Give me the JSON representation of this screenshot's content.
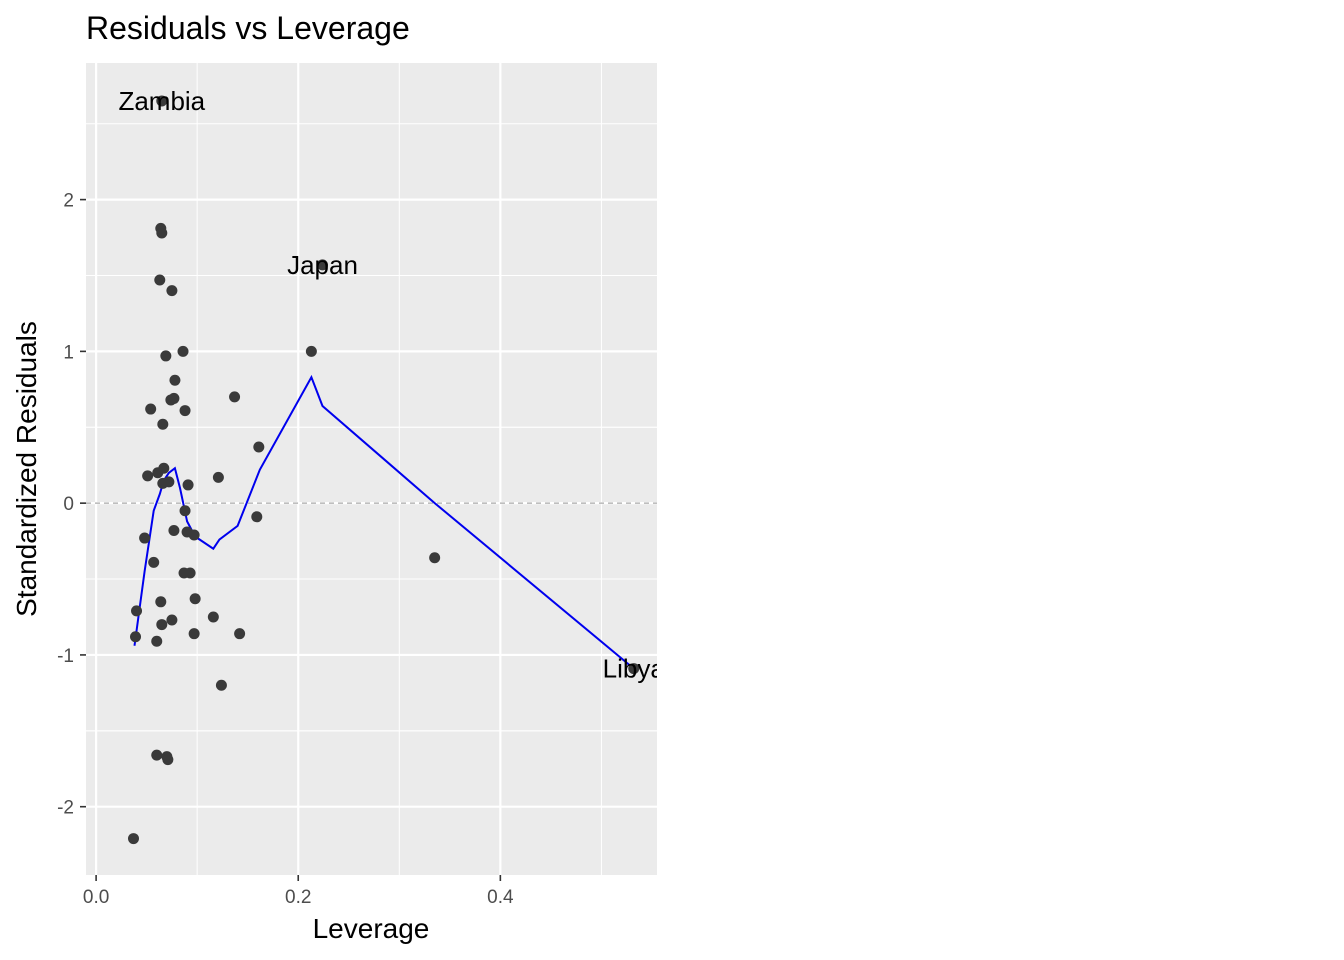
{
  "chart_data": {
    "type": "scatter",
    "title": "Residuals vs Leverage",
    "xlabel": "Leverage",
    "ylabel": "Standardized Residuals",
    "xlim": [
      -0.01,
      0.555
    ],
    "ylim": [
      -2.45,
      2.9
    ],
    "xticks": [
      0.0,
      0.2,
      0.4
    ],
    "xtick_labels": [
      "0.0",
      "0.2",
      "0.4"
    ],
    "yticks": [
      -2,
      -1,
      0,
      1,
      2
    ],
    "ytick_labels": [
      "-2",
      "-1",
      "0",
      "1",
      "2"
    ],
    "grid": true,
    "reference_line": {
      "y": 0,
      "style": "dashed"
    },
    "colors": {
      "panel": "#ebebeb",
      "grid": "#ffffff",
      "points": "#3a3a3a",
      "smooth": "#0000ee",
      "refline": "#a9a9a9"
    },
    "points": [
      {
        "x": 0.065,
        "y": 2.65
      },
      {
        "x": 0.064,
        "y": 1.81
      },
      {
        "x": 0.065,
        "y": 1.78
      },
      {
        "x": 0.063,
        "y": 1.47
      },
      {
        "x": 0.075,
        "y": 1.4
      },
      {
        "x": 0.086,
        "y": 1.0
      },
      {
        "x": 0.069,
        "y": 0.97
      },
      {
        "x": 0.078,
        "y": 0.81
      },
      {
        "x": 0.137,
        "y": 0.7
      },
      {
        "x": 0.077,
        "y": 0.69
      },
      {
        "x": 0.074,
        "y": 0.68
      },
      {
        "x": 0.054,
        "y": 0.62
      },
      {
        "x": 0.088,
        "y": 0.61
      },
      {
        "x": 0.066,
        "y": 0.52
      },
      {
        "x": 0.161,
        "y": 0.37
      },
      {
        "x": 0.067,
        "y": 0.23
      },
      {
        "x": 0.061,
        "y": 0.2
      },
      {
        "x": 0.051,
        "y": 0.18
      },
      {
        "x": 0.072,
        "y": 0.14
      },
      {
        "x": 0.066,
        "y": 0.13
      },
      {
        "x": 0.121,
        "y": 0.17
      },
      {
        "x": 0.091,
        "y": 0.12
      },
      {
        "x": 0.088,
        "y": -0.05
      },
      {
        "x": 0.159,
        "y": -0.09
      },
      {
        "x": 0.077,
        "y": -0.18
      },
      {
        "x": 0.09,
        "y": -0.19
      },
      {
        "x": 0.097,
        "y": -0.21
      },
      {
        "x": 0.048,
        "y": -0.23
      },
      {
        "x": 0.057,
        "y": -0.39
      },
      {
        "x": 0.087,
        "y": -0.46
      },
      {
        "x": 0.093,
        "y": -0.46
      },
      {
        "x": 0.098,
        "y": -0.63
      },
      {
        "x": 0.064,
        "y": -0.65
      },
      {
        "x": 0.04,
        "y": -0.71
      },
      {
        "x": 0.116,
        "y": -0.75
      },
      {
        "x": 0.075,
        "y": -0.77
      },
      {
        "x": 0.065,
        "y": -0.8
      },
      {
        "x": 0.142,
        "y": -0.86
      },
      {
        "x": 0.097,
        "y": -0.86
      },
      {
        "x": 0.039,
        "y": -0.88
      },
      {
        "x": 0.06,
        "y": -0.91
      },
      {
        "x": 0.124,
        "y": -1.2
      },
      {
        "x": 0.06,
        "y": -1.66
      },
      {
        "x": 0.07,
        "y": -1.67
      },
      {
        "x": 0.071,
        "y": -1.69
      },
      {
        "x": 0.037,
        "y": -2.21
      },
      {
        "x": 0.213,
        "y": 1.0
      },
      {
        "x": 0.224,
        "y": 1.57
      },
      {
        "x": 0.335,
        "y": -0.36
      },
      {
        "x": 0.532,
        "y": -1.09
      }
    ],
    "smooth_line": [
      {
        "x": 0.038,
        "y": -0.94
      },
      {
        "x": 0.048,
        "y": -0.45
      },
      {
        "x": 0.057,
        "y": -0.05
      },
      {
        "x": 0.063,
        "y": 0.06
      },
      {
        "x": 0.067,
        "y": 0.15
      },
      {
        "x": 0.072,
        "y": 0.2
      },
      {
        "x": 0.078,
        "y": 0.23
      },
      {
        "x": 0.083,
        "y": 0.1
      },
      {
        "x": 0.09,
        "y": -0.12
      },
      {
        "x": 0.098,
        "y": -0.22
      },
      {
        "x": 0.116,
        "y": -0.3
      },
      {
        "x": 0.122,
        "y": -0.24
      },
      {
        "x": 0.14,
        "y": -0.15
      },
      {
        "x": 0.162,
        "y": 0.22
      },
      {
        "x": 0.213,
        "y": 0.83
      },
      {
        "x": 0.224,
        "y": 0.64
      },
      {
        "x": 0.335,
        "y": 0.0
      },
      {
        "x": 0.532,
        "y": -1.09
      }
    ],
    "annotations": [
      {
        "text": "Zambia",
        "x": 0.065,
        "y": 2.65
      },
      {
        "text": "Japan",
        "x": 0.224,
        "y": 1.57
      },
      {
        "text": "Libya",
        "x": 0.532,
        "y": -1.09
      }
    ]
  }
}
